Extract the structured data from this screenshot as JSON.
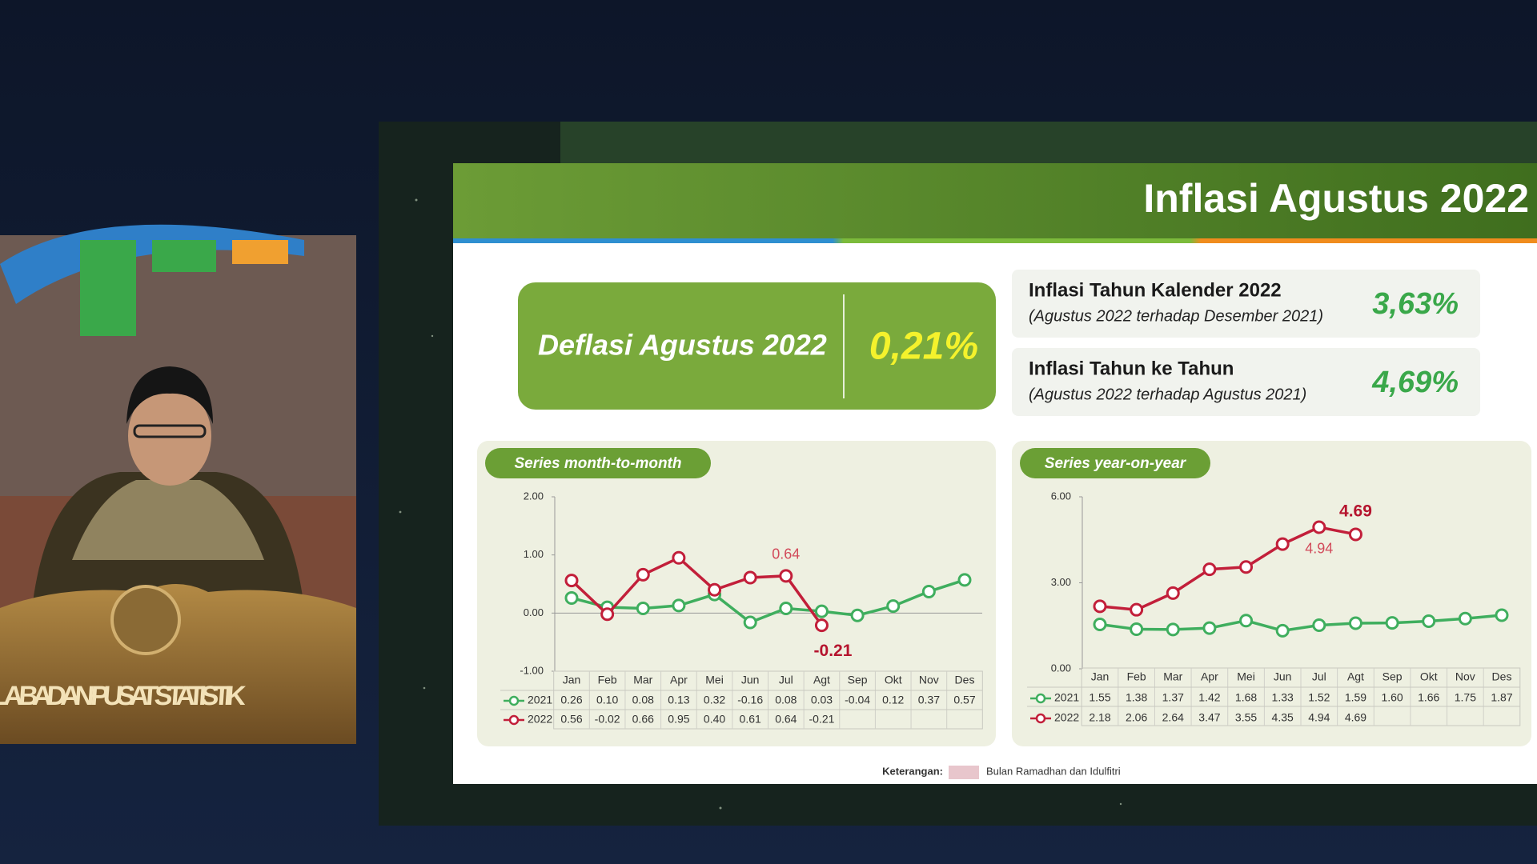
{
  "video": {
    "podium_text": "KEPALA BADAN PUSAT STATISTIK"
  },
  "slide": {
    "title": "Inflasi Agustus 2022",
    "headline": {
      "label": "Deflasi Agustus 2022",
      "value": "0,21%"
    },
    "stats": [
      {
        "label": "Inflasi Tahun Kalender 2022",
        "sublabel": "(Agustus 2022 terhadap Desember 2021)",
        "value": "3,63%"
      },
      {
        "label": "Inflasi Tahun ke Tahun",
        "sublabel": "(Agustus 2022 terhadap Agustus 2021)",
        "value": "4,69%"
      }
    ],
    "note": {
      "label": "Keterangan:",
      "text": "Bulan Ramadhan dan Idulfitri"
    }
  },
  "chart_data": [
    {
      "type": "line",
      "title": "Series month-to-month",
      "categories": [
        "Jan",
        "Feb",
        "Mar",
        "Apr",
        "Mei",
        "Jun",
        "Jul",
        "Agt",
        "Sep",
        "Okt",
        "Nov",
        "Des"
      ],
      "series": [
        {
          "name": "2021",
          "color": "#3fae5e",
          "values": [
            0.26,
            0.1,
            0.08,
            0.13,
            0.32,
            -0.16,
            0.08,
            0.03,
            -0.04,
            0.12,
            0.37,
            0.57
          ],
          "value_labels": [
            "0.26",
            "0.10",
            "0.08",
            "0.13",
            "0.32",
            "-0.16",
            "0.08",
            "0.03",
            "-0.04",
            "0.12",
            "0.37",
            "0.57"
          ]
        },
        {
          "name": "2022",
          "color": "#c21f3a",
          "values": [
            0.56,
            -0.02,
            0.66,
            0.95,
            0.4,
            0.61,
            0.64,
            -0.21,
            null,
            null,
            null,
            null
          ],
          "value_labels": [
            "0.56",
            "-0.02",
            "0.66",
            "0.95",
            "0.40",
            "0.61",
            "0.64",
            "-0.21",
            null,
            null,
            null,
            null
          ]
        }
      ],
      "ylim": [
        -1,
        2
      ],
      "yticks": [
        {
          "value": 2,
          "label": "2.00"
        },
        {
          "value": 1,
          "label": "1.00"
        },
        {
          "value": 0,
          "label": "0.00"
        },
        {
          "value": -1,
          "label": "-1.00"
        }
      ]
    },
    {
      "type": "line",
      "title": "Series year-on-year",
      "categories": [
        "Jan",
        "Feb",
        "Mar",
        "Apr",
        "Mei",
        "Jun",
        "Jul",
        "Agt",
        "Sep",
        "Okt",
        "Nov",
        "Des"
      ],
      "series": [
        {
          "name": "2021",
          "color": "#3fae5e",
          "values": [
            1.55,
            1.38,
            1.37,
            1.42,
            1.68,
            1.33,
            1.52,
            1.59,
            1.6,
            1.66,
            1.75,
            1.87
          ],
          "value_labels": [
            "1.55",
            "1.38",
            "1.37",
            "1.42",
            "1.68",
            "1.33",
            "1.52",
            "1.59",
            "1.60",
            "1.66",
            "1.75",
            "1.87"
          ]
        },
        {
          "name": "2022",
          "color": "#c21f3a",
          "values": [
            2.18,
            2.06,
            2.64,
            3.47,
            3.55,
            4.35,
            4.94,
            4.69,
            null,
            null,
            null,
            null
          ],
          "value_labels": [
            "2.18",
            "2.06",
            "2.64",
            "3.47",
            "3.55",
            "4.35",
            "4.94",
            "4.69",
            null,
            null,
            null,
            null
          ]
        }
      ],
      "ylim": [
        0,
        6
      ],
      "yticks": [
        {
          "value": 6,
          "label": "6.00"
        },
        {
          "value": 3,
          "label": "3.00"
        },
        {
          "value": 0,
          "label": "0.00"
        }
      ]
    }
  ]
}
